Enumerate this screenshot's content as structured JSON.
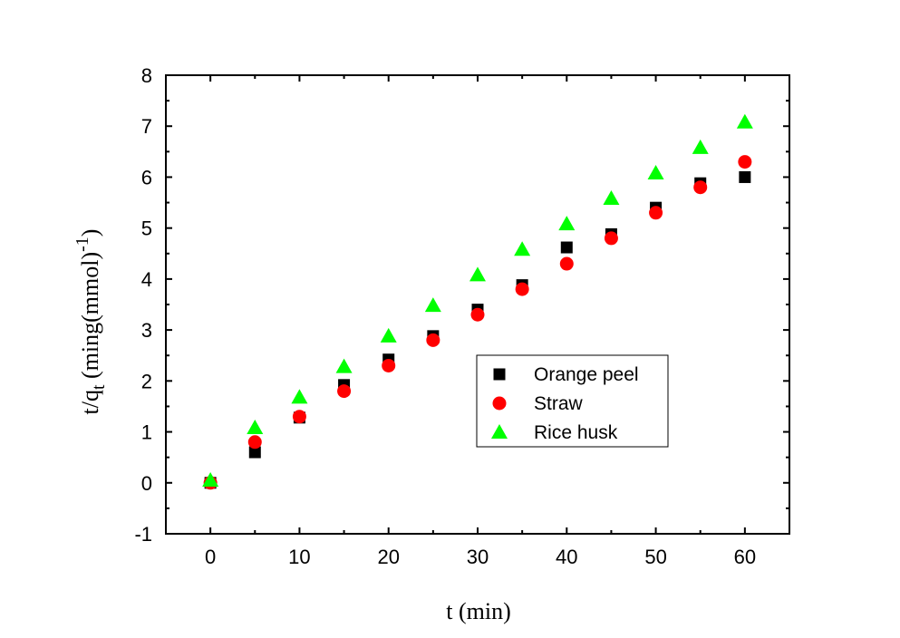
{
  "chart_data": {
    "type": "scatter",
    "xlabel": "t (min)",
    "ylabel": {
      "main": "t/q",
      "subscript": "t",
      "rest": " (ming(mmol)",
      "superscript": "-1",
      "close": ")"
    },
    "xlim": [
      -5,
      65
    ],
    "ylim": [
      -1,
      8
    ],
    "xticks": [
      0,
      10,
      20,
      30,
      40,
      50,
      60
    ],
    "yticks": [
      -1,
      0,
      1,
      2,
      3,
      4,
      5,
      6,
      7,
      8
    ],
    "grid": false,
    "legend_position": "center-right",
    "x": [
      0,
      5,
      10,
      15,
      20,
      25,
      30,
      35,
      40,
      45,
      50,
      55,
      60
    ],
    "series": [
      {
        "name": "Orange peel",
        "marker": "square",
        "color": "#000000",
        "values": [
          0.0,
          0.6,
          1.28,
          1.92,
          2.42,
          2.88,
          3.4,
          3.88,
          4.62,
          4.88,
          5.4,
          5.88,
          6.0
        ]
      },
      {
        "name": "Straw",
        "marker": "circle",
        "color": "#ff0000",
        "values": [
          0.0,
          0.8,
          1.3,
          1.8,
          2.3,
          2.8,
          3.3,
          3.8,
          4.3,
          4.8,
          5.3,
          5.8,
          6.3
        ]
      },
      {
        "name": "Rice husk",
        "marker": "triangle",
        "color": "#00ff00",
        "values": [
          0.05,
          1.08,
          1.68,
          2.28,
          2.88,
          3.48,
          4.08,
          4.58,
          5.08,
          5.58,
          6.08,
          6.58,
          7.08
        ]
      }
    ]
  }
}
